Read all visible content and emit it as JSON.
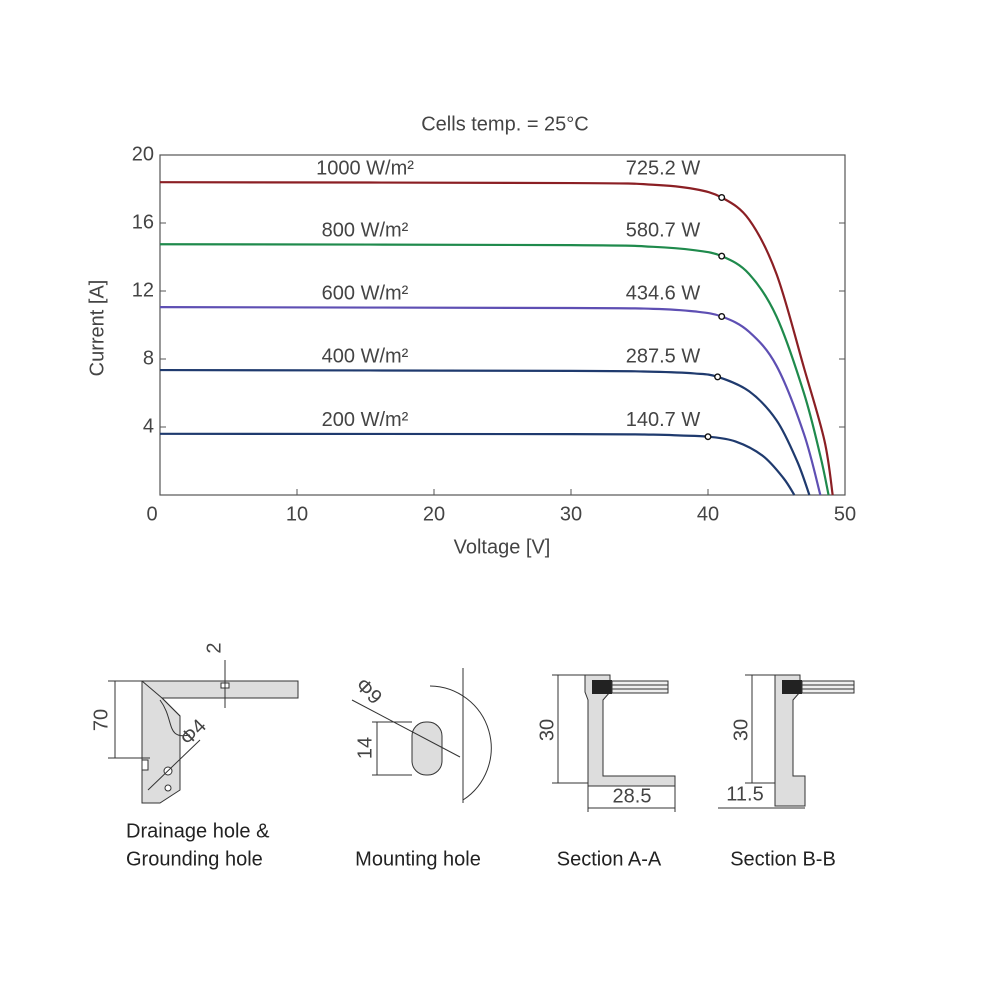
{
  "chart_data": {
    "type": "line",
    "title": "Cells temp. = 25°C",
    "x_label": "Voltage [V]",
    "y_label": "Current [A]",
    "xlim": [
      0,
      50
    ],
    "ylim": [
      0,
      20
    ],
    "xticks": [
      0,
      10,
      20,
      30,
      40,
      50
    ],
    "yticks": [
      4,
      8,
      12,
      16,
      20
    ],
    "series": [
      {
        "name": "1000 W/m²",
        "color": "#8b1f24",
        "power_label": "725.2 W",
        "mpp_x": 41.0,
        "mpp_y": 17.5,
        "x": [
          0,
          30,
          36,
          39,
          41,
          43,
          45,
          47,
          48.5,
          49.1
        ],
        "values": [
          18.4,
          18.35,
          18.25,
          18.0,
          17.5,
          16.2,
          13.0,
          7.5,
          3.2,
          0
        ]
      },
      {
        "name": "800 W/m²",
        "color": "#1f8a4c",
        "power_label": "580.7 W",
        "mpp_x": 41.0,
        "mpp_y": 14.05,
        "x": [
          0,
          30,
          36,
          39,
          41,
          43,
          45,
          47,
          48.2,
          48.8
        ],
        "values": [
          14.75,
          14.7,
          14.6,
          14.4,
          14.05,
          13.0,
          10.5,
          6.0,
          2.3,
          0
        ]
      },
      {
        "name": "600 W/m²",
        "color": "#5e4fb3",
        "power_label": "434.6 W",
        "mpp_x": 41.0,
        "mpp_y": 10.5,
        "x": [
          0,
          30,
          36,
          39,
          41,
          43,
          45,
          47,
          48.2
        ],
        "values": [
          11.05,
          11.0,
          10.95,
          10.8,
          10.5,
          9.6,
          7.6,
          3.6,
          0
        ]
      },
      {
        "name": "400 W/m²",
        "color": "#1f3a6e",
        "power_label": "287.5 W",
        "mpp_x": 40.7,
        "mpp_y": 6.95,
        "x": [
          0,
          30,
          36,
          39,
          40.7,
          43,
          45,
          46.5,
          47.4
        ],
        "values": [
          7.35,
          7.3,
          7.25,
          7.15,
          6.95,
          6.1,
          4.4,
          2.0,
          0
        ]
      },
      {
        "name": "200 W/m²",
        "color": "#1f3a6e",
        "power_label": "140.7 W",
        "mpp_x": 40.0,
        "mpp_y": 3.43,
        "x": [
          0,
          30,
          36,
          38,
          40,
          42,
          44,
          45.5,
          46.3
        ],
        "values": [
          3.6,
          3.58,
          3.55,
          3.5,
          3.43,
          3.15,
          2.3,
          1.0,
          0
        ]
      }
    ]
  },
  "drawings": {
    "drainage": {
      "caption_line1": "Drainage hole &",
      "caption_line2": "Grounding hole",
      "dim_height": "70",
      "dim_thickness": "2",
      "dim_hole": "Φ4"
    },
    "mounting": {
      "caption": "Mounting hole",
      "dim_diameter": "Φ9",
      "dim_height": "14"
    },
    "section_a": {
      "caption": "Section A-A",
      "dim_height": "30",
      "dim_width": "28.5"
    },
    "section_b": {
      "caption": "Section B-B",
      "dim_height": "30",
      "dim_width": "11.5"
    }
  }
}
